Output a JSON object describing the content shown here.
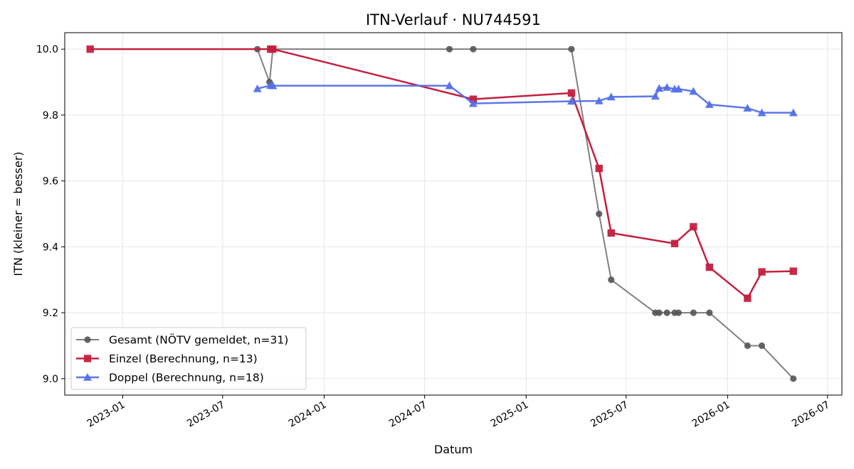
{
  "chart_data": {
    "type": "line",
    "title": "ITN-Verlauf · NU744591",
    "xlabel": "Datum",
    "ylabel": "ITN  (kleiner = besser)",
    "xlim": [
      "2022-09-18",
      "2026-07-27"
    ],
    "ylim": [
      8.95,
      10.05
    ],
    "x_ticks": [
      "2023-01",
      "2023-07",
      "2024-01",
      "2024-07",
      "2025-01",
      "2025-07",
      "2026-01",
      "2026-07"
    ],
    "x_tick_dates": [
      "2023-01-01",
      "2023-07-01",
      "2024-01-01",
      "2024-07-01",
      "2025-01-01",
      "2025-07-01",
      "2026-01-01",
      "2026-07-01"
    ],
    "y_ticks": [
      "9.0",
      "9.2",
      "9.4",
      "9.6",
      "9.8",
      "10.0"
    ],
    "y_tick_values": [
      9.0,
      9.2,
      9.4,
      9.6,
      9.8,
      10.0
    ],
    "grid": true,
    "legend_position": "bottom-left",
    "series": [
      {
        "name": "Gesamt (NÖTV gemeldet, n=31)",
        "color": "#555555",
        "marker": "circle",
        "points": [
          [
            "2023-09-02",
            10.0
          ],
          [
            "2023-09-24",
            9.9
          ],
          [
            "2023-09-30",
            10.0
          ],
          [
            "2024-08-15",
            10.0
          ],
          [
            "2024-09-27",
            10.0
          ],
          [
            "2025-03-24",
            10.0
          ],
          [
            "2025-05-13",
            9.5
          ],
          [
            "2025-06-04",
            9.3
          ],
          [
            "2025-08-23",
            9.2
          ],
          [
            "2025-08-30",
            9.2
          ],
          [
            "2025-09-13",
            9.2
          ],
          [
            "2025-09-27",
            9.2
          ],
          [
            "2025-10-04",
            9.2
          ],
          [
            "2025-10-31",
            9.2
          ],
          [
            "2025-11-29",
            9.2
          ],
          [
            "2026-02-06",
            9.1
          ],
          [
            "2026-03-04",
            9.1
          ],
          [
            "2026-04-30",
            9.0
          ]
        ]
      },
      {
        "name": "Einzel (Berechnung, n=13)",
        "color": "#c4203f",
        "marker": "square",
        "points": [
          [
            "2022-11-03",
            10.0
          ],
          [
            "2023-09-26",
            10.0
          ],
          [
            "2023-09-30",
            10.0
          ],
          [
            "2024-09-27",
            9.848
          ],
          [
            "2025-03-24",
            9.867
          ],
          [
            "2025-05-13",
            9.638
          ],
          [
            "2025-06-04",
            9.442
          ],
          [
            "2025-09-27",
            9.41
          ],
          [
            "2025-10-31",
            9.461
          ],
          [
            "2025-11-29",
            9.338
          ],
          [
            "2026-02-06",
            9.244
          ],
          [
            "2026-03-04",
            9.324
          ],
          [
            "2026-04-30",
            9.326
          ]
        ]
      },
      {
        "name": "Doppel (Berechnung, n=18)",
        "color": "#5470e8",
        "marker": "triangle",
        "points": [
          [
            "2023-09-02",
            9.88
          ],
          [
            "2023-09-26",
            9.89
          ],
          [
            "2023-09-30",
            9.889
          ],
          [
            "2024-08-15",
            9.889
          ],
          [
            "2024-09-27",
            9.835
          ],
          [
            "2025-03-24",
            9.842
          ],
          [
            "2025-05-13",
            9.843
          ],
          [
            "2025-06-04",
            9.855
          ],
          [
            "2025-08-23",
            9.857
          ],
          [
            "2025-08-30",
            9.881
          ],
          [
            "2025-09-13",
            9.884
          ],
          [
            "2025-09-27",
            9.879
          ],
          [
            "2025-10-04",
            9.879
          ],
          [
            "2025-10-31",
            9.872
          ],
          [
            "2025-11-29",
            9.832
          ],
          [
            "2026-02-06",
            9.821
          ],
          [
            "2026-03-04",
            9.807
          ],
          [
            "2026-04-30",
            9.807
          ]
        ]
      }
    ]
  }
}
